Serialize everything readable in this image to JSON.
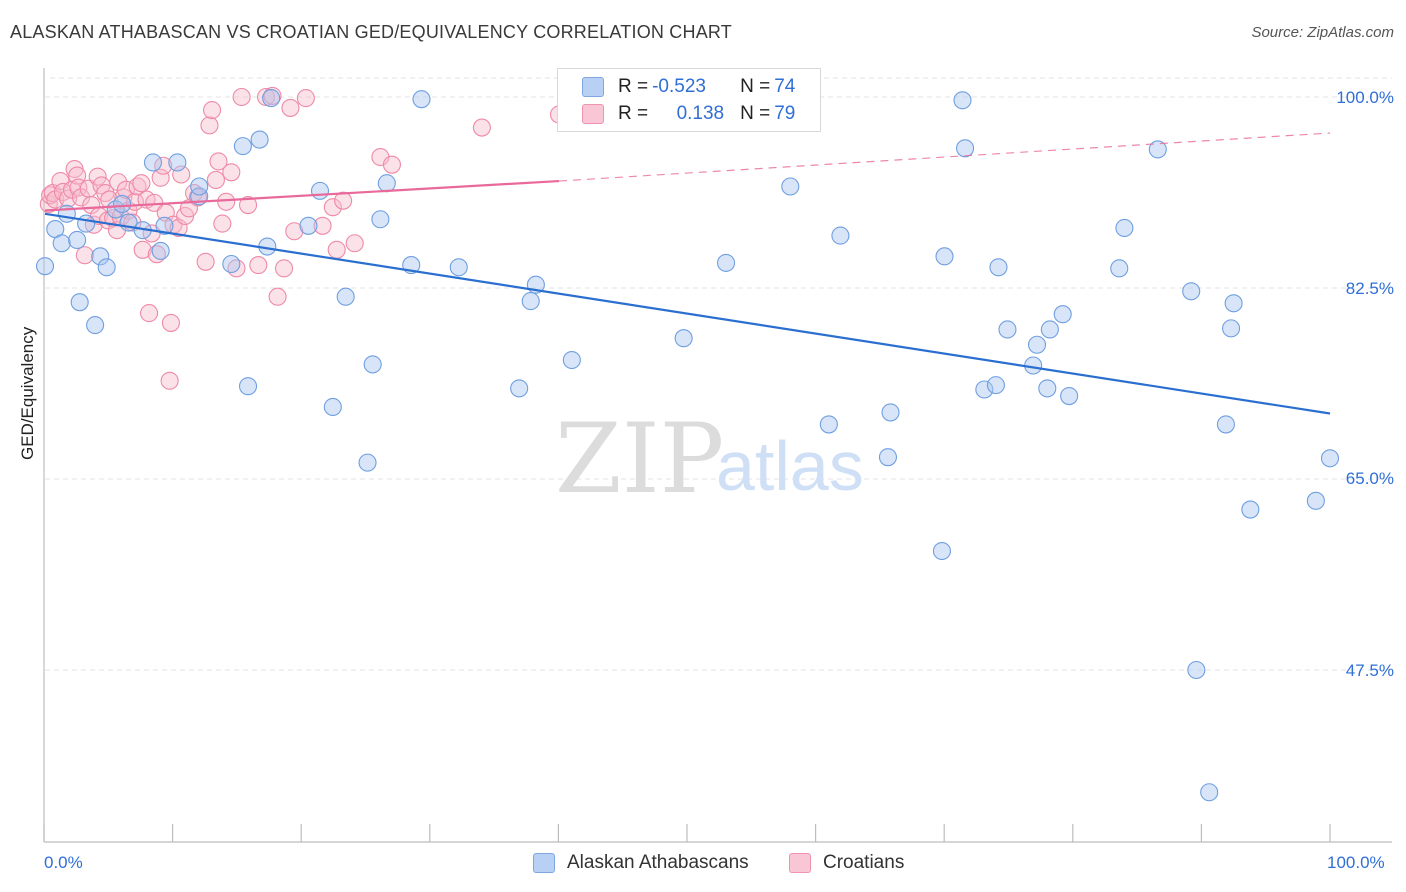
{
  "header": {
    "title": "ALASKAN ATHABASCAN VS CROATIAN GED/EQUIVALENCY CORRELATION CHART",
    "source": "Source: ZipAtlas.com"
  },
  "watermark": {
    "zip": "ZIP",
    "atlas": "atlas"
  },
  "legend": {
    "row1": {
      "r_label": "R = ",
      "r_value": "-0.523",
      "n_label": "N = ",
      "n_value": "74"
    },
    "row2": {
      "r_label": "R = ",
      "r_value": "0.138",
      "n_label": "N = ",
      "n_value": "79"
    }
  },
  "bottom_legend": {
    "series1": "Alaskan Athabascans",
    "series2": "Croatians"
  },
  "axes": {
    "ylabel": "GED/Equivalency",
    "yticks": [
      "100.0%",
      "82.5%",
      "65.0%",
      "47.5%"
    ],
    "xtick_left": "0.0%",
    "xtick_right": "100.0%"
  },
  "colors": {
    "blue_fill": "#a9c6f0",
    "blue_stroke": "#6f9fe0",
    "blue_line": "#2a6fd0",
    "pink_fill": "#f7bccd",
    "pink_stroke": "#ee8aa8",
    "pink_line": "#e8699a",
    "text_blue": "#2f6fd6",
    "grid": "#e3e3e3"
  },
  "chart_data": {
    "type": "scatter",
    "xlim": [
      0,
      100
    ],
    "ylim": [
      30,
      103
    ],
    "series": [
      {
        "name": "Alaskan Athabascans",
        "trend": {
          "x": [
            0,
            100
          ],
          "y": [
            89.3,
            71.0
          ]
        },
        "points": [
          [
            0,
            84.5
          ],
          [
            0.8,
            87.9
          ],
          [
            1.3,
            86.6
          ],
          [
            1.7,
            89.3
          ],
          [
            2.5,
            86.9
          ],
          [
            2.7,
            81.2
          ],
          [
            3.2,
            88.4
          ],
          [
            3.9,
            79.1
          ],
          [
            4.3,
            85.4
          ],
          [
            4.8,
            84.4
          ],
          [
            5.5,
            89.7
          ],
          [
            6.0,
            90.2
          ],
          [
            6.5,
            88.5
          ],
          [
            7.6,
            87.8
          ],
          [
            8.4,
            94.0
          ],
          [
            9.0,
            85.9
          ],
          [
            9.3,
            88.2
          ],
          [
            10.3,
            94.0
          ],
          [
            12.0,
            90.9
          ],
          [
            12.0,
            91.8
          ],
          [
            14.5,
            84.7
          ],
          [
            15.4,
            95.5
          ],
          [
            15.8,
            73.5
          ],
          [
            16.7,
            96.1
          ],
          [
            17.3,
            86.3
          ],
          [
            17.6,
            99.9
          ],
          [
            20.5,
            88.2
          ],
          [
            21.4,
            91.4
          ],
          [
            22.4,
            71.6
          ],
          [
            23.4,
            81.7
          ],
          [
            25.1,
            66.5
          ],
          [
            25.5,
            75.5
          ],
          [
            26.1,
            88.8
          ],
          [
            26.6,
            92.1
          ],
          [
            28.5,
            84.6
          ],
          [
            29.3,
            99.8
          ],
          [
            32.2,
            84.4
          ],
          [
            36.9,
            73.3
          ],
          [
            37.8,
            81.3
          ],
          [
            38.2,
            82.8
          ],
          [
            41.0,
            75.9
          ],
          [
            49.7,
            77.9
          ],
          [
            53.0,
            84.8
          ],
          [
            58.0,
            91.8
          ],
          [
            61.0,
            70.0
          ],
          [
            61.9,
            87.3
          ],
          [
            65.6,
            67.0
          ],
          [
            65.8,
            71.1
          ],
          [
            69.8,
            58.4
          ],
          [
            70.0,
            85.4
          ],
          [
            71.4,
            99.7
          ],
          [
            71.6,
            95.3
          ],
          [
            73.1,
            73.2
          ],
          [
            74.0,
            73.6
          ],
          [
            74.2,
            84.4
          ],
          [
            74.9,
            78.7
          ],
          [
            76.9,
            75.4
          ],
          [
            77.2,
            77.3
          ],
          [
            78.0,
            73.3
          ],
          [
            78.2,
            78.7
          ],
          [
            79.2,
            80.1
          ],
          [
            79.7,
            72.6
          ],
          [
            83.6,
            84.3
          ],
          [
            86.6,
            95.2
          ],
          [
            89.2,
            82.2
          ],
          [
            89.6,
            47.5
          ],
          [
            90.6,
            36.3
          ],
          [
            91.9,
            70.0
          ],
          [
            92.3,
            78.8
          ],
          [
            92.5,
            81.1
          ],
          [
            93.8,
            62.2
          ],
          [
            98.9,
            63.0
          ],
          [
            100,
            66.9
          ],
          [
            84.0,
            88.0
          ]
        ]
      },
      {
        "name": "Croatians",
        "trend": {
          "x": [
            0,
            40
          ],
          "y": [
            89.6,
            92.3
          ]
        },
        "trend_extension": {
          "x": [
            40,
            100
          ],
          "y": [
            92.3,
            96.7
          ]
        },
        "points": [
          [
            0.3,
            90.2
          ],
          [
            0.4,
            91.0
          ],
          [
            0.6,
            91.2
          ],
          [
            0.8,
            90.6
          ],
          [
            1.2,
            92.3
          ],
          [
            1.4,
            91.3
          ],
          [
            1.8,
            90.7
          ],
          [
            2.1,
            91.5
          ],
          [
            2.3,
            93.4
          ],
          [
            2.5,
            92.8
          ],
          [
            2.6,
            91.7
          ],
          [
            2.8,
            90.8
          ],
          [
            3.1,
            85.5
          ],
          [
            3.4,
            91.6
          ],
          [
            3.6,
            90.1
          ],
          [
            3.8,
            88.3
          ],
          [
            4.1,
            92.7
          ],
          [
            4.2,
            89.1
          ],
          [
            4.4,
            91.9
          ],
          [
            4.7,
            91.2
          ],
          [
            4.9,
            88.7
          ],
          [
            5.0,
            90.6
          ],
          [
            5.3,
            88.9
          ],
          [
            5.6,
            87.8
          ],
          [
            5.7,
            92.2
          ],
          [
            5.9,
            89.0
          ],
          [
            6.1,
            90.8
          ],
          [
            6.3,
            91.5
          ],
          [
            6.5,
            89.6
          ],
          [
            6.8,
            88.5
          ],
          [
            7.0,
            90.4
          ],
          [
            7.2,
            91.8
          ],
          [
            7.5,
            92.1
          ],
          [
            7.6,
            86.0
          ],
          [
            7.9,
            90.6
          ],
          [
            8.1,
            80.2
          ],
          [
            8.3,
            87.5
          ],
          [
            8.5,
            90.3
          ],
          [
            8.7,
            85.6
          ],
          [
            9.0,
            92.6
          ],
          [
            9.2,
            93.7
          ],
          [
            9.4,
            89.4
          ],
          [
            9.7,
            74.0
          ],
          [
            9.8,
            79.3
          ],
          [
            10.0,
            88.3
          ],
          [
            10.4,
            88.0
          ],
          [
            10.6,
            92.9
          ],
          [
            10.9,
            89.1
          ],
          [
            11.2,
            89.8
          ],
          [
            11.6,
            91.2
          ],
          [
            11.9,
            90.8
          ],
          [
            12.5,
            84.9
          ],
          [
            12.8,
            97.4
          ],
          [
            13.0,
            98.8
          ],
          [
            13.3,
            92.4
          ],
          [
            13.5,
            94.1
          ],
          [
            13.8,
            88.4
          ],
          [
            14.1,
            90.4
          ],
          [
            14.5,
            93.1
          ],
          [
            14.9,
            84.3
          ],
          [
            15.3,
            100.0
          ],
          [
            15.8,
            90.1
          ],
          [
            16.6,
            84.6
          ],
          [
            17.2,
            100.0
          ],
          [
            17.7,
            100.1
          ],
          [
            18.1,
            81.7
          ],
          [
            18.6,
            84.3
          ],
          [
            19.1,
            99.0
          ],
          [
            19.4,
            87.7
          ],
          [
            20.3,
            99.9
          ],
          [
            21.6,
            88.2
          ],
          [
            22.4,
            89.9
          ],
          [
            22.7,
            86.0
          ],
          [
            23.2,
            90.5
          ],
          [
            24.1,
            86.6
          ],
          [
            26.1,
            94.5
          ],
          [
            27.0,
            93.8
          ],
          [
            34.0,
            97.2
          ],
          [
            40.0,
            98.4
          ]
        ]
      }
    ]
  }
}
